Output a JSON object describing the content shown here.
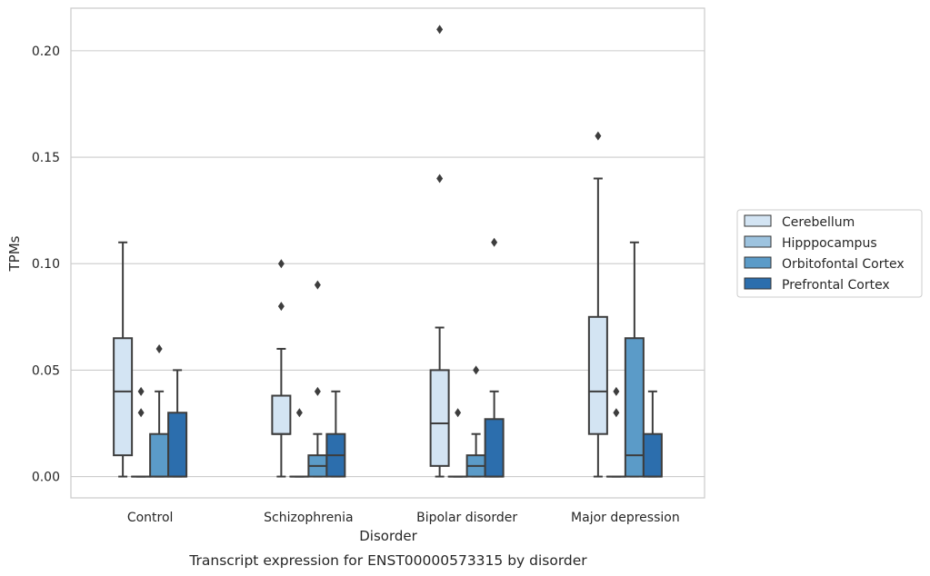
{
  "chart_data": {
    "type": "box",
    "xlabel": "Disorder",
    "ylabel": "TPMs",
    "caption": "Transcript expression for ENST00000573315 by disorder",
    "ylim": [
      -0.01,
      0.22
    ],
    "yticks": [
      0.0,
      0.05,
      0.1,
      0.15,
      0.2
    ],
    "ytick_labels": [
      "0.00",
      "0.05",
      "0.10",
      "0.15",
      "0.20"
    ],
    "grid": true,
    "legend_position": "right",
    "categories": [
      "Control",
      "Schizophrenia",
      "Bipolar disorder",
      "Major depression"
    ],
    "series": [
      {
        "name": "Cerebellum",
        "color": "#d3e4f3",
        "boxes": [
          {
            "whisker_low": 0.0,
            "q1": 0.01,
            "median": 0.04,
            "q3": 0.065,
            "whisker_high": 0.11,
            "outliers": []
          },
          {
            "whisker_low": 0.0,
            "q1": 0.02,
            "median": 0.02,
            "q3": 0.038,
            "whisker_high": 0.06,
            "outliers": [
              0.08,
              0.1
            ]
          },
          {
            "whisker_low": 0.0,
            "q1": 0.005,
            "median": 0.025,
            "q3": 0.05,
            "whisker_high": 0.07,
            "outliers": [
              0.14,
              0.21
            ]
          },
          {
            "whisker_low": 0.0,
            "q1": 0.02,
            "median": 0.04,
            "q3": 0.075,
            "whisker_high": 0.14,
            "outliers": [
              0.16
            ]
          }
        ]
      },
      {
        "name": "Hipppocampus",
        "color": "#9dc3df",
        "boxes": [
          {
            "whisker_low": 0.0,
            "q1": 0.0,
            "median": 0.0,
            "q3": 0.0,
            "whisker_high": 0.0,
            "outliers": [
              0.03,
              0.04
            ]
          },
          {
            "whisker_low": 0.0,
            "q1": 0.0,
            "median": 0.0,
            "q3": 0.0,
            "whisker_high": 0.0,
            "outliers": [
              0.03
            ]
          },
          {
            "whisker_low": 0.0,
            "q1": 0.0,
            "median": 0.0,
            "q3": 0.0,
            "whisker_high": 0.0,
            "outliers": [
              0.03
            ]
          },
          {
            "whisker_low": 0.0,
            "q1": 0.0,
            "median": 0.0,
            "q3": 0.0,
            "whisker_high": 0.0,
            "outliers": [
              0.03,
              0.04
            ]
          }
        ]
      },
      {
        "name": "Orbitofontal Cortex",
        "color": "#5b9bc8",
        "boxes": [
          {
            "whisker_low": 0.0,
            "q1": 0.0,
            "median": 0.0,
            "q3": 0.02,
            "whisker_high": 0.04,
            "outliers": [
              0.06
            ]
          },
          {
            "whisker_low": 0.0,
            "q1": 0.0,
            "median": 0.005,
            "q3": 0.01,
            "whisker_high": 0.02,
            "outliers": [
              0.04,
              0.09
            ]
          },
          {
            "whisker_low": 0.0,
            "q1": 0.0,
            "median": 0.005,
            "q3": 0.01,
            "whisker_high": 0.02,
            "outliers": [
              0.05
            ]
          },
          {
            "whisker_low": 0.0,
            "q1": 0.0,
            "median": 0.01,
            "q3": 0.065,
            "whisker_high": 0.11,
            "outliers": []
          }
        ]
      },
      {
        "name": "Prefrontal Cortex",
        "color": "#2c6ead",
        "boxes": [
          {
            "whisker_low": 0.0,
            "q1": 0.0,
            "median": 0.0,
            "q3": 0.03,
            "whisker_high": 0.05,
            "outliers": []
          },
          {
            "whisker_low": 0.0,
            "q1": 0.0,
            "median": 0.01,
            "q3": 0.02,
            "whisker_high": 0.04,
            "outliers": []
          },
          {
            "whisker_low": 0.0,
            "q1": 0.0,
            "median": 0.0,
            "q3": 0.027,
            "whisker_high": 0.04,
            "outliers": [
              0.11
            ]
          },
          {
            "whisker_low": 0.0,
            "q1": 0.0,
            "median": 0.0,
            "q3": 0.02,
            "whisker_high": 0.04,
            "outliers": []
          }
        ]
      }
    ]
  }
}
